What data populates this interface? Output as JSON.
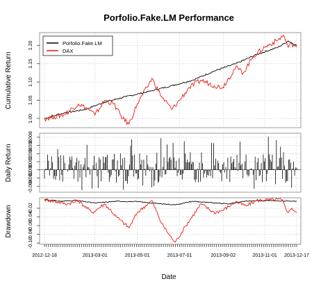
{
  "chart_data": {
    "type": "line",
    "title": "Porfolio.Fake.LM Performance",
    "xlabel": "Date",
    "date_range": [
      "2012-12-18",
      "2013-12-17"
    ],
    "x_ticks": [
      "2012-12-18",
      "2013-03-01",
      "2013-05-01",
      "2013-07-01",
      "2013-09-02",
      "2013-11-01",
      "2013-12-17"
    ],
    "legend": {
      "placement": "top-left",
      "items": [
        {
          "name": "Porfolio.Fake.LM",
          "color": "#000000"
        },
        {
          "name": "DAX",
          "color": "#e8180d"
        }
      ]
    },
    "grid": true,
    "panels": [
      {
        "id": "cumulative",
        "ylabel": "Cumulative Return",
        "ylim": [
          0.975,
          1.235
        ],
        "y_ticks": [
          "1.00",
          "1.05",
          "1.10",
          "1.15",
          "1.20"
        ],
        "series": [
          {
            "name": "Porfolio.Fake.LM",
            "color": "#000000",
            "knots": [
              [
                "2012-12-18",
                1.0
              ],
              [
                "2013-01-15",
                1.015
              ],
              [
                "2013-02-15",
                1.025
              ],
              [
                "2013-03-15",
                1.045
              ],
              [
                "2013-04-15",
                1.06
              ],
              [
                "2013-05-20",
                1.075
              ],
              [
                "2013-06-20",
                1.09
              ],
              [
                "2013-07-20",
                1.105
              ],
              [
                "2013-08-20",
                1.13
              ],
              [
                "2013-09-20",
                1.15
              ],
              [
                "2013-10-20",
                1.175
              ],
              [
                "2013-11-20",
                1.195
              ],
              [
                "2013-12-05",
                1.212
              ],
              [
                "2013-12-17",
                1.2
              ]
            ]
          },
          {
            "name": "DAX",
            "color": "#e8180d",
            "knots": [
              [
                "2012-12-18",
                1.0
              ],
              [
                "2013-01-01",
                1.005
              ],
              [
                "2013-01-15",
                1.01
              ],
              [
                "2013-02-05",
                1.04
              ],
              [
                "2013-02-20",
                1.025
              ],
              [
                "2013-03-01",
                1.01
              ],
              [
                "2013-03-15",
                1.05
              ],
              [
                "2013-03-28",
                1.04
              ],
              [
                "2013-04-10",
                1.0
              ],
              [
                "2013-04-19",
                0.985
              ],
              [
                "2013-05-01",
                1.04
              ],
              [
                "2013-05-15",
                1.085
              ],
              [
                "2013-05-22",
                1.11
              ],
              [
                "2013-06-05",
                1.06
              ],
              [
                "2013-06-20",
                1.025
              ],
              [
                "2013-07-01",
                1.05
              ],
              [
                "2013-07-15",
                1.085
              ],
              [
                "2013-08-01",
                1.105
              ],
              [
                "2013-08-20",
                1.09
              ],
              [
                "2013-09-01",
                1.085
              ],
              [
                "2013-09-20",
                1.14
              ],
              [
                "2013-10-01",
                1.125
              ],
              [
                "2013-10-15",
                1.17
              ],
              [
                "2013-11-01",
                1.195
              ],
              [
                "2013-11-20",
                1.215
              ],
              [
                "2013-11-28",
                1.228
              ],
              [
                "2013-12-05",
                1.195
              ],
              [
                "2013-12-10",
                1.205
              ],
              [
                "2013-12-17",
                1.195
              ]
            ]
          }
        ]
      },
      {
        "id": "daily",
        "ylabel": "Daily Return",
        "ylim": [
          -0.0055,
          0.009
        ],
        "y_ticks": [
          "-0.004",
          "-0.002",
          "0.000",
          "0.002",
          "0.004",
          "0.006",
          "0.008"
        ],
        "series": [
          {
            "name": "Porfolio.Fake.LM",
            "type": "bars",
            "color": "#000000",
            "approx_range": [
              -0.005,
              0.0085
            ]
          }
        ]
      },
      {
        "id": "drawdown",
        "ylabel": "Drawdown",
        "ylim": [
          -0.103,
          0.004
        ],
        "y_ticks": [
          "-0.10",
          "-0.08",
          "-0.06",
          "-0.04",
          "-0.02"
        ],
        "series": [
          {
            "name": "Porfolio.Fake.LM",
            "color": "#000000",
            "knots": [
              [
                "2012-12-18",
                0.0
              ],
              [
                "2013-01-10",
                -0.004
              ],
              [
                "2013-02-01",
                -0.002
              ],
              [
                "2013-03-01",
                -0.008
              ],
              [
                "2013-04-01",
                -0.004
              ],
              [
                "2013-05-01",
                -0.005
              ],
              [
                "2013-06-05",
                -0.01
              ],
              [
                "2013-06-25",
                -0.012
              ],
              [
                "2013-07-20",
                -0.004
              ],
              [
                "2013-08-20",
                -0.008
              ],
              [
                "2013-09-10",
                -0.01
              ],
              [
                "2013-10-01",
                -0.004
              ],
              [
                "2013-11-01",
                -0.002
              ],
              [
                "2013-12-17",
                -0.004
              ]
            ]
          },
          {
            "name": "DAX",
            "color": "#e8180d",
            "knots": [
              [
                "2012-12-18",
                0.0
              ],
              [
                "2013-01-20",
                -0.01
              ],
              [
                "2013-02-05",
                -0.003
              ],
              [
                "2013-02-25",
                -0.03
              ],
              [
                "2013-03-15",
                -0.01
              ],
              [
                "2013-04-01",
                -0.04
              ],
              [
                "2013-04-19",
                -0.065
              ],
              [
                "2013-05-01",
                -0.03
              ],
              [
                "2013-05-22",
                -0.002
              ],
              [
                "2013-06-05",
                -0.055
              ],
              [
                "2013-06-20",
                -0.09
              ],
              [
                "2013-06-25",
                -0.098
              ],
              [
                "2013-07-10",
                -0.06
              ],
              [
                "2013-08-01",
                -0.01
              ],
              [
                "2013-08-20",
                -0.03
              ],
              [
                "2013-09-01",
                -0.025
              ],
              [
                "2013-09-20",
                -0.005
              ],
              [
                "2013-10-05",
                -0.015
              ],
              [
                "2013-10-20",
                -0.002
              ],
              [
                "2013-11-25",
                0.0
              ],
              [
                "2013-12-05",
                -0.03
              ],
              [
                "2013-12-10",
                -0.02
              ],
              [
                "2013-12-17",
                -0.03
              ]
            ]
          }
        ]
      }
    ]
  }
}
